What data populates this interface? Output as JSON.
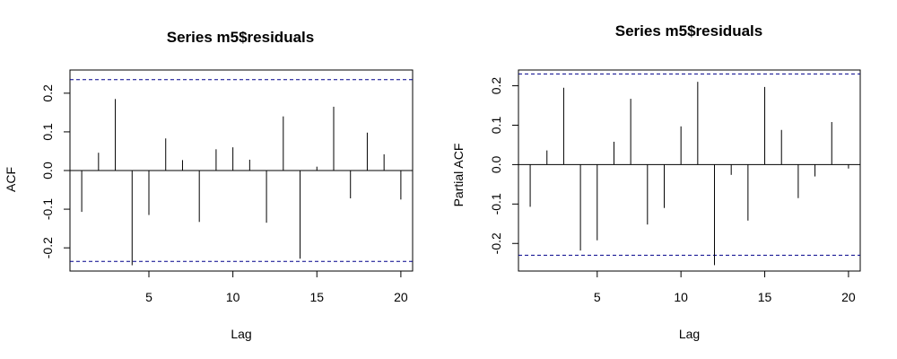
{
  "chart_data": [
    {
      "type": "bar",
      "title": "Series m5$residuals",
      "xlabel": "Lag",
      "ylabel": "ACF",
      "xlim": [
        0.3,
        20.7
      ],
      "ylim": [
        -0.26,
        0.26
      ],
      "xticks": [
        5,
        10,
        15,
        20
      ],
      "yticks": [
        -0.2,
        -0.1,
        0.0,
        0.1,
        0.2
      ],
      "ytick_labels": [
        "-0.2",
        "-0.1",
        "0.0",
        "0.1",
        "0.2"
      ],
      "confidence_bound": 0.235,
      "bound_color": "#00008b",
      "grid": false,
      "lags": [
        1,
        2,
        3,
        4,
        5,
        6,
        7,
        8,
        9,
        10,
        11,
        12,
        13,
        14,
        15,
        16,
        17,
        18,
        19,
        20
      ],
      "values": [
        -0.107,
        0.046,
        0.185,
        -0.245,
        -0.115,
        0.083,
        0.027,
        -0.133,
        0.055,
        0.06,
        0.028,
        -0.135,
        0.14,
        -0.228,
        0.01,
        0.165,
        -0.072,
        0.098,
        0.042,
        -0.075
      ]
    },
    {
      "type": "bar",
      "title": "Series  m5$residuals",
      "xlabel": "Lag",
      "ylabel": "Partial ACF",
      "xlim": [
        0.3,
        20.7
      ],
      "ylim": [
        -0.27,
        0.24
      ],
      "xticks": [
        5,
        10,
        15,
        20
      ],
      "yticks": [
        -0.2,
        -0.1,
        0.0,
        0.1,
        0.2
      ],
      "ytick_labels": [
        "-0.2",
        "-0.1",
        "0.0",
        "0.1",
        "0.2"
      ],
      "confidence_bound": 0.23,
      "bound_color": "#00008b",
      "grid": false,
      "lags": [
        1,
        2,
        3,
        4,
        5,
        6,
        7,
        8,
        9,
        10,
        11,
        12,
        13,
        14,
        15,
        16,
        17,
        18,
        19,
        20
      ],
      "values": [
        -0.107,
        0.036,
        0.195,
        -0.218,
        -0.192,
        0.058,
        0.167,
        -0.152,
        -0.11,
        0.097,
        0.21,
        -0.255,
        -0.026,
        -0.142,
        0.197,
        0.088,
        -0.085,
        -0.03,
        0.108,
        -0.01
      ]
    }
  ]
}
